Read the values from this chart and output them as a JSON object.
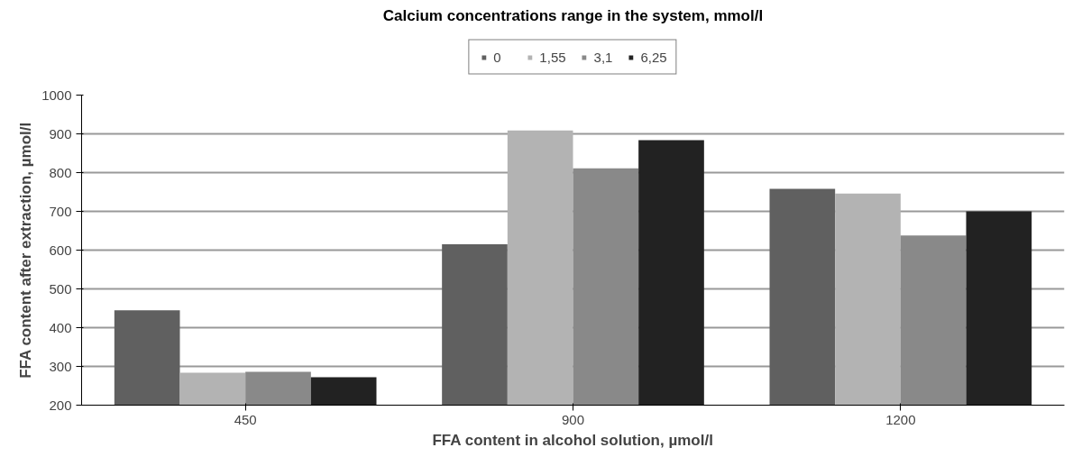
{
  "chart_data": {
    "type": "bar",
    "title": "Calcium concentrations range in the system, mmol/l",
    "xlabel": "FFA content in alcohol solution, µmol/l",
    "ylabel": "FFA content after extraction, µmol/l",
    "categories": [
      "450",
      "900",
      "1200"
    ],
    "series": [
      {
        "name": "0",
        "color": "#606060",
        "values": [
          445,
          615,
          758
        ]
      },
      {
        "name": "1,55",
        "color": "#b3b3b3",
        "values": [
          284,
          909,
          746
        ]
      },
      {
        "name": "3,1",
        "color": "#898989",
        "values": [
          286,
          811,
          638
        ]
      },
      {
        "name": "6,25",
        "color": "#222222",
        "values": [
          272,
          884,
          700
        ]
      }
    ],
    "ylim": [
      200,
      1000
    ],
    "yticks": [
      200,
      300,
      400,
      500,
      600,
      700,
      800,
      900,
      1000
    ],
    "grid": "y",
    "legend": "top"
  }
}
